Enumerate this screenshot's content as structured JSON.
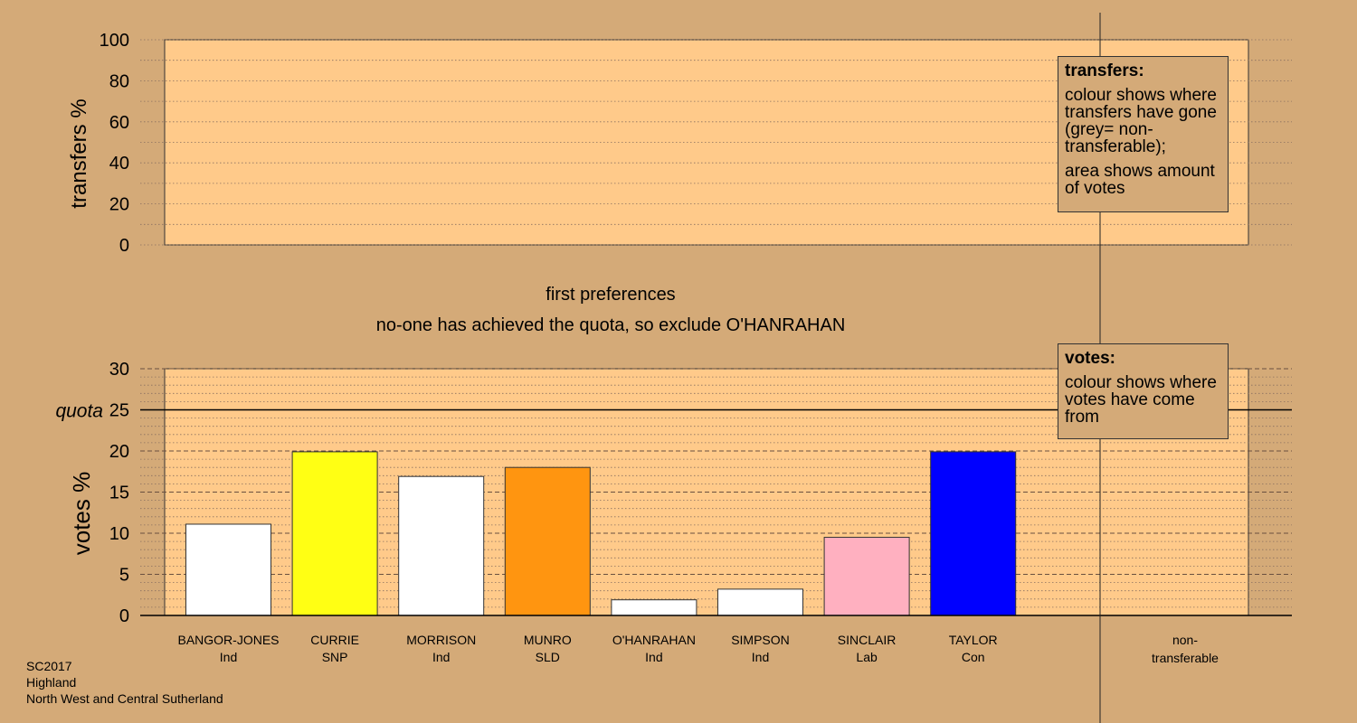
{
  "chart_data": [
    {
      "type": "bar",
      "ylabel": "transfers %",
      "ylim": [
        0,
        100
      ],
      "yticks": [
        0,
        20,
        40,
        60,
        80,
        100
      ],
      "values": []
    },
    {
      "type": "bar",
      "title": "first preferences",
      "subtitle": "no-one has achieved the quota, so exclude O'HANRAHAN",
      "ylabel": "votes %",
      "ylim": [
        0,
        30
      ],
      "yticks": [
        0,
        5,
        10,
        15,
        20,
        25,
        30
      ],
      "quota_label": "quota",
      "quota_value": 25,
      "categories": [
        {
          "name": "BANGOR-JONES",
          "party": "Ind",
          "value": 11.1,
          "color": "#ffffff"
        },
        {
          "name": "CURRIE",
          "party": "SNP",
          "value": 19.9,
          "color": "#ffff14"
        },
        {
          "name": "MORRISON",
          "party": "Ind",
          "value": 16.9,
          "color": "#ffffff"
        },
        {
          "name": "MUNRO",
          "party": "SLD",
          "value": 18.0,
          "color": "#ff9510"
        },
        {
          "name": "O'HANRAHAN",
          "party": "Ind",
          "value": 1.9,
          "color": "#ffffff"
        },
        {
          "name": "SIMPSON",
          "party": "Ind",
          "value": 3.2,
          "color": "#ffffff"
        },
        {
          "name": "SINCLAIR",
          "party": "Lab",
          "value": 9.5,
          "color": "#ffb0c0"
        },
        {
          "name": "TAYLOR",
          "party": "Con",
          "value": 19.9,
          "color": "#0000ff"
        }
      ],
      "nontransferable_label": [
        "non-",
        "transferable"
      ]
    }
  ],
  "legend_transfers": {
    "title": "transfers:",
    "line1": "colour shows where transfers have gone (grey= non-transferable);",
    "line2": "area shows amount of votes"
  },
  "legend_votes": {
    "title": "votes:",
    "line1": "colour shows where votes have come from"
  },
  "footer": {
    "election": "SC2017",
    "council": "Highland",
    "ward": "North West and Central Sutherland"
  }
}
